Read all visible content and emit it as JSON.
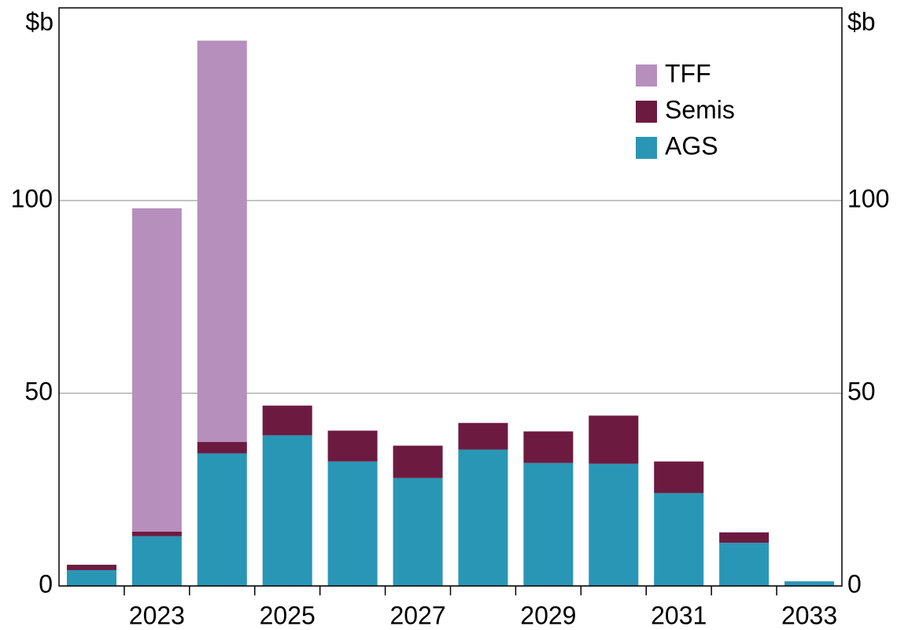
{
  "chart_data": {
    "type": "stacked_bar",
    "y_label": "$b",
    "y2_label": "$b",
    "categories": [
      null,
      "2023",
      null,
      "2025",
      null,
      "2027",
      null,
      "2029",
      null,
      "2031",
      null,
      "2033"
    ],
    "series": [
      {
        "name": "AGS",
        "color": "#2a96b5",
        "values": [
          4.1,
          12.9,
          34.4,
          39.1,
          32.3,
          28.0,
          35.4,
          31.9,
          31.7,
          24.1,
          11.2,
          1.2
        ]
      },
      {
        "name": "Semis",
        "color": "#6d1a40",
        "values": [
          1.4,
          1.2,
          3.0,
          7.7,
          8.0,
          8.4,
          6.9,
          8.2,
          12.5,
          8.2,
          2.7,
          0
        ]
      },
      {
        "name": "TFF",
        "color": "#b68fbd",
        "values": [
          0,
          83.9,
          104.1,
          0,
          0,
          0,
          0,
          0,
          0,
          0,
          0,
          0
        ]
      }
    ],
    "ylim": [
      0,
      150
    ],
    "yticks": [
      0,
      50,
      100
    ],
    "y2lim": [
      0,
      150
    ],
    "y2ticks": [
      0,
      50,
      100
    ],
    "grid": true
  }
}
